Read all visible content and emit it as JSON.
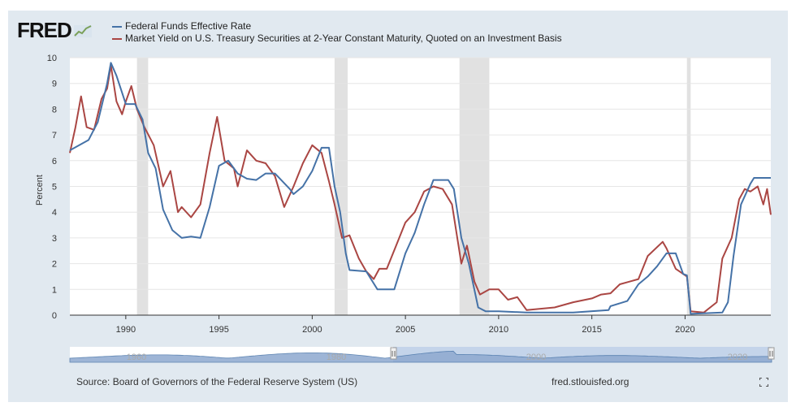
{
  "brand": {
    "logo_text": "FRED",
    "site": "fred.stlouisfed.org"
  },
  "legend": [
    {
      "name": "Federal Funds Effective Rate",
      "color": "#4572a7"
    },
    {
      "name": "Market Yield on U.S. Treasury Securities at 2-Year Constant Maturity, Quoted on an Investment Basis",
      "color": "#aa4643"
    }
  ],
  "source": "Source: Board of Governors of the Federal Reserve System (US)",
  "navigator": {
    "tick_labels": [
      "1960",
      "1980",
      "2000",
      "2020"
    ]
  },
  "chart_data": {
    "type": "line",
    "ylabel": "Percent",
    "xlim": [
      1987,
      2024.6
    ],
    "ylim": [
      0,
      10
    ],
    "yticks": [
      0,
      1,
      2,
      3,
      4,
      5,
      6,
      7,
      8,
      9,
      10
    ],
    "xticks": [
      1990,
      1995,
      2000,
      2005,
      2010,
      2015,
      2020
    ],
    "grid": true,
    "recessions": [
      [
        1990.6,
        1991.2
      ],
      [
        2001.2,
        2001.9
      ],
      [
        2007.9,
        2009.5
      ],
      [
        2020.1,
        2020.3
      ]
    ],
    "series": [
      {
        "name": "Federal Funds Effective Rate",
        "color": "#4572a7",
        "points": [
          [
            1987,
            6.4
          ],
          [
            1987.5,
            6.6
          ],
          [
            1988,
            6.8
          ],
          [
            1988.5,
            7.5
          ],
          [
            1989,
            9.0
          ],
          [
            1989.2,
            9.8
          ],
          [
            1989.5,
            9.3
          ],
          [
            1990,
            8.2
          ],
          [
            1990.5,
            8.2
          ],
          [
            1990.9,
            7.6
          ],
          [
            1991.2,
            6.3
          ],
          [
            1991.6,
            5.7
          ],
          [
            1992,
            4.1
          ],
          [
            1992.5,
            3.3
          ],
          [
            1993,
            3.0
          ],
          [
            1993.5,
            3.05
          ],
          [
            1994,
            3.0
          ],
          [
            1994.5,
            4.2
          ],
          [
            1995,
            5.8
          ],
          [
            1995.5,
            6.0
          ],
          [
            1996,
            5.5
          ],
          [
            1996.5,
            5.3
          ],
          [
            1997,
            5.25
          ],
          [
            1997.5,
            5.5
          ],
          [
            1998,
            5.5
          ],
          [
            1998.8,
            4.9
          ],
          [
            1999,
            4.7
          ],
          [
            1999.5,
            5.0
          ],
          [
            2000,
            5.6
          ],
          [
            2000.5,
            6.5
          ],
          [
            2000.9,
            6.5
          ],
          [
            2001.2,
            5.0
          ],
          [
            2001.5,
            4.0
          ],
          [
            2001.8,
            2.4
          ],
          [
            2002,
            1.75
          ],
          [
            2002.9,
            1.7
          ],
          [
            2003.5,
            1.0
          ],
          [
            2004.4,
            1.0
          ],
          [
            2005,
            2.4
          ],
          [
            2005.5,
            3.2
          ],
          [
            2006,
            4.3
          ],
          [
            2006.5,
            5.25
          ],
          [
            2007.3,
            5.25
          ],
          [
            2007.6,
            4.9
          ],
          [
            2008,
            3.0
          ],
          [
            2008.4,
            2.0
          ],
          [
            2008.9,
            0.3
          ],
          [
            2009.3,
            0.15
          ],
          [
            2010,
            0.15
          ],
          [
            2011.5,
            0.1
          ],
          [
            2014,
            0.1
          ],
          [
            2015.9,
            0.2
          ],
          [
            2016,
            0.35
          ],
          [
            2016.9,
            0.55
          ],
          [
            2017.5,
            1.2
          ],
          [
            2018,
            1.5
          ],
          [
            2018.5,
            1.9
          ],
          [
            2019,
            2.4
          ],
          [
            2019.5,
            2.4
          ],
          [
            2019.9,
            1.6
          ],
          [
            2020.1,
            1.55
          ],
          [
            2020.3,
            0.05
          ],
          [
            2022,
            0.1
          ],
          [
            2022.3,
            0.5
          ],
          [
            2022.6,
            2.3
          ],
          [
            2023,
            4.3
          ],
          [
            2023.5,
            5.1
          ],
          [
            2023.7,
            5.33
          ],
          [
            2024.6,
            5.33
          ]
        ]
      },
      {
        "name": "Market Yield on U.S. Treasury Securities at 2-Year Constant Maturity, Quoted on an Investment Basis",
        "color": "#aa4643",
        "points": [
          [
            1987,
            6.3
          ],
          [
            1987.3,
            7.3
          ],
          [
            1987.6,
            8.5
          ],
          [
            1987.9,
            7.3
          ],
          [
            1988.3,
            7.2
          ],
          [
            1988.7,
            8.4
          ],
          [
            1989,
            8.8
          ],
          [
            1989.2,
            9.7
          ],
          [
            1989.5,
            8.3
          ],
          [
            1989.8,
            7.8
          ],
          [
            1990,
            8.3
          ],
          [
            1990.3,
            8.9
          ],
          [
            1990.6,
            8.0
          ],
          [
            1991,
            7.3
          ],
          [
            1991.5,
            6.6
          ],
          [
            1992,
            5.0
          ],
          [
            1992.4,
            5.6
          ],
          [
            1992.8,
            4.0
          ],
          [
            1993,
            4.2
          ],
          [
            1993.5,
            3.8
          ],
          [
            1994,
            4.3
          ],
          [
            1994.5,
            6.3
          ],
          [
            1994.9,
            7.7
          ],
          [
            1995.3,
            6.0
          ],
          [
            1995.8,
            5.7
          ],
          [
            1996,
            5.0
          ],
          [
            1996.5,
            6.4
          ],
          [
            1997,
            6.0
          ],
          [
            1997.5,
            5.9
          ],
          [
            1998,
            5.4
          ],
          [
            1998.5,
            4.2
          ],
          [
            1999,
            5.0
          ],
          [
            1999.5,
            5.9
          ],
          [
            2000,
            6.6
          ],
          [
            2000.5,
            6.3
          ],
          [
            2000.9,
            5.2
          ],
          [
            2001.2,
            4.3
          ],
          [
            2001.6,
            3.0
          ],
          [
            2002,
            3.1
          ],
          [
            2002.5,
            2.2
          ],
          [
            2002.9,
            1.7
          ],
          [
            2003.3,
            1.4
          ],
          [
            2003.6,
            1.8
          ],
          [
            2004,
            1.8
          ],
          [
            2004.5,
            2.7
          ],
          [
            2005,
            3.6
          ],
          [
            2005.5,
            4.0
          ],
          [
            2006,
            4.8
          ],
          [
            2006.5,
            5.0
          ],
          [
            2007,
            4.9
          ],
          [
            2007.5,
            4.3
          ],
          [
            2008,
            2.0
          ],
          [
            2008.3,
            2.7
          ],
          [
            2008.7,
            1.3
          ],
          [
            2009,
            0.8
          ],
          [
            2009.5,
            1.0
          ],
          [
            2010,
            1.0
          ],
          [
            2010.5,
            0.6
          ],
          [
            2011,
            0.7
          ],
          [
            2011.5,
            0.2
          ],
          [
            2013,
            0.3
          ],
          [
            2014,
            0.5
          ],
          [
            2015,
            0.65
          ],
          [
            2015.5,
            0.8
          ],
          [
            2016,
            0.85
          ],
          [
            2016.5,
            1.2
          ],
          [
            2017,
            1.3
          ],
          [
            2017.5,
            1.4
          ],
          [
            2018,
            2.3
          ],
          [
            2018.8,
            2.85
          ],
          [
            2019,
            2.6
          ],
          [
            2019.5,
            1.8
          ],
          [
            2020.1,
            1.5
          ],
          [
            2020.3,
            0.15
          ],
          [
            2021,
            0.1
          ],
          [
            2021.7,
            0.5
          ],
          [
            2022,
            2.2
          ],
          [
            2022.5,
            3.0
          ],
          [
            2022.9,
            4.5
          ],
          [
            2023.2,
            4.9
          ],
          [
            2023.5,
            4.8
          ],
          [
            2023.9,
            5.0
          ],
          [
            2024.2,
            4.3
          ],
          [
            2024.4,
            4.9
          ],
          [
            2024.6,
            3.9
          ]
        ]
      }
    ]
  }
}
